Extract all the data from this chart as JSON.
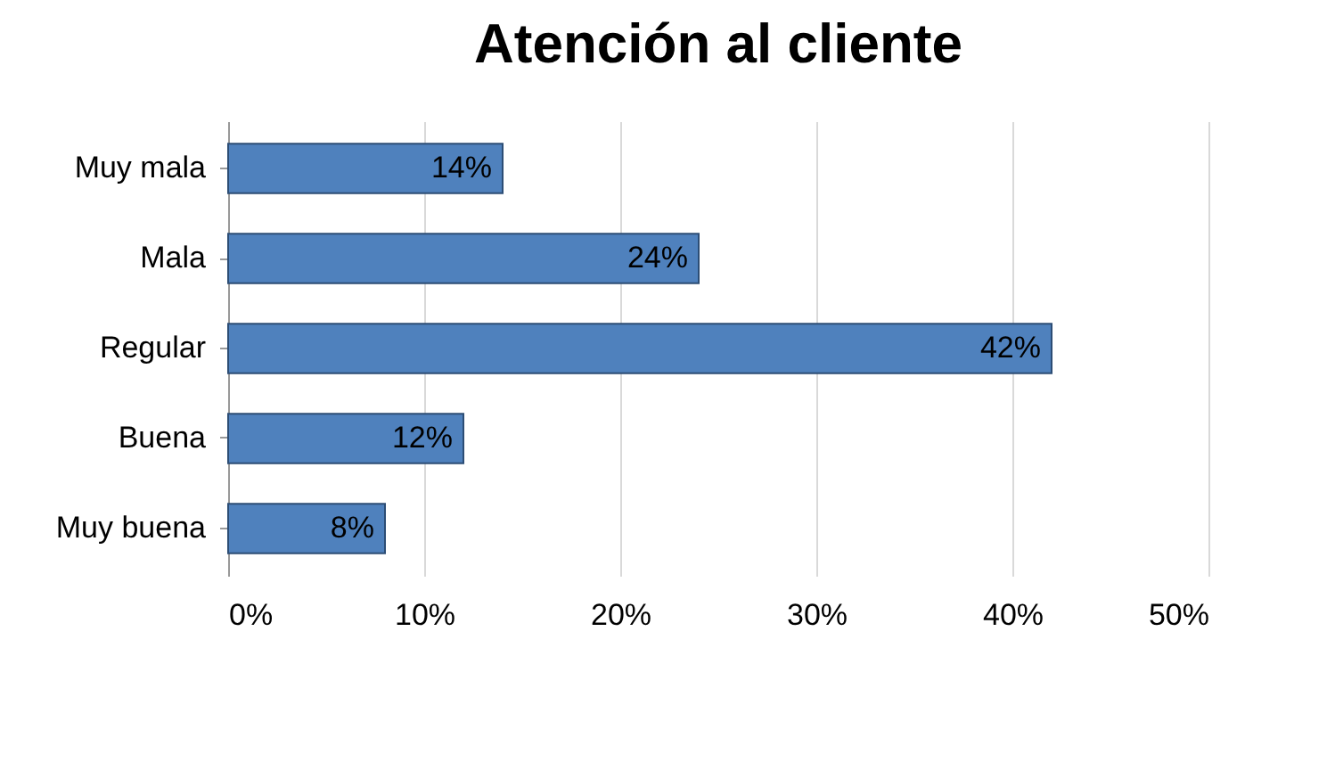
{
  "chart_data": {
    "type": "bar",
    "orientation": "horizontal",
    "title": "Atención al cliente",
    "categories": [
      "Muy mala",
      "Mala",
      "Regular",
      "Buena",
      "Muy buena"
    ],
    "values": [
      14,
      24,
      42,
      12,
      8
    ],
    "value_labels": [
      "14%",
      "24%",
      "42%",
      "12%",
      "8%"
    ],
    "color": "#4f81bd",
    "xlim": [
      0,
      50
    ],
    "xticks": [
      {
        "value": 0,
        "label": "0%"
      },
      {
        "value": 10,
        "label": "10%"
      },
      {
        "value": 20,
        "label": "20%"
      },
      {
        "value": 30,
        "label": "30%"
      },
      {
        "value": 40,
        "label": "40%"
      },
      {
        "value": 50,
        "label": "50%"
      }
    ],
    "grid": "x"
  }
}
